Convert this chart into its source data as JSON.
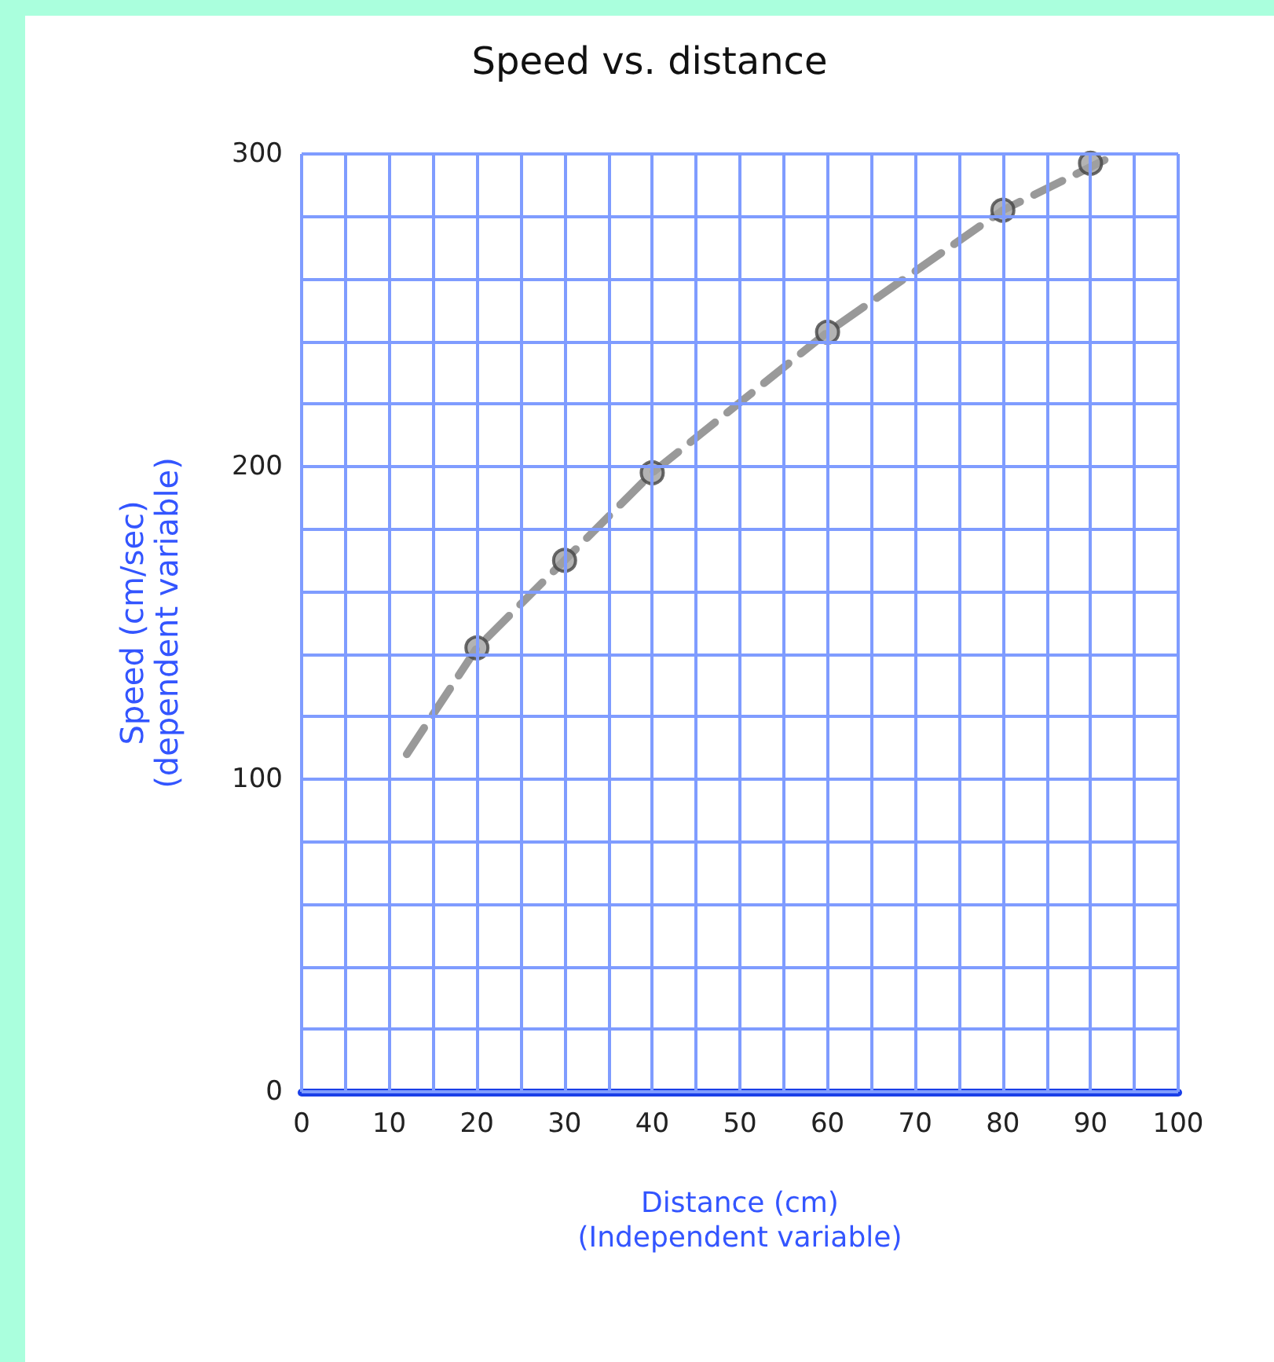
{
  "chart_data": {
    "type": "scatter",
    "title": "Speed vs. distance",
    "xlabel": "Distance (cm)\n(Independent variable)",
    "ylabel": "Speed (cm/sec)\n(dependent variable)",
    "xlim": [
      0,
      100
    ],
    "xticks": [
      0,
      10,
      20,
      30,
      40,
      50,
      60,
      70,
      80,
      90,
      100
    ],
    "ylim": [
      0,
      300
    ],
    "yticks": [
      0,
      100,
      200,
      300
    ],
    "grid": true,
    "series": [
      {
        "type": "line",
        "x": [
          12,
          20,
          30,
          40,
          60,
          80,
          93
        ],
        "values": [
          108,
          142,
          170,
          198,
          243,
          282,
          300
        ],
        "color": "#999999",
        "line_style": "dashed",
        "marker": "none"
      },
      {
        "x": [
          20,
          30,
          40,
          60,
          80,
          90
        ],
        "values": [
          142,
          170,
          198,
          243,
          282,
          297
        ],
        "color": "#a0a0a0",
        "marker": "circle"
      }
    ]
  }
}
